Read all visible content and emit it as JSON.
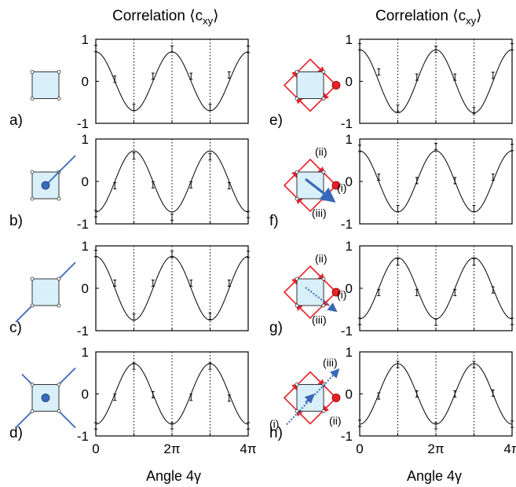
{
  "header": {
    "left": "Correlation ⟨c",
    "left_sub": "xy",
    "left_close": "⟩",
    "right": "Correlation ⟨c",
    "right_sub": "xy",
    "right_close": "⟩"
  },
  "x_axis": {
    "label_left": "Angle  4γ",
    "label_right": "Angle  4γ",
    "ticks": [
      "0",
      "2π",
      "4π"
    ]
  },
  "y_ticks": [
    "1",
    "0",
    "-1"
  ],
  "colors": {
    "square_fill": "#d9f0fa",
    "line_blue": "#3a68b8",
    "arrow_red": "#e8202a",
    "curve": "#000000"
  },
  "panels": [
    {
      "label": "a)",
      "icon": "square",
      "annotations": []
    },
    {
      "label": "b)",
      "icon": "square-dot-halfline",
      "annotations": []
    },
    {
      "label": "c)",
      "icon": "square-diagonal-line",
      "annotations": []
    },
    {
      "label": "d)",
      "icon": "square-dot-cross",
      "annotations": []
    },
    {
      "label": "e)",
      "icon": "square-red-loop",
      "annotations": []
    },
    {
      "label": "f)",
      "icon": "square-red-loop-solid-arrow",
      "annotations": [
        "(ii)",
        "(i)",
        "(iii)"
      ]
    },
    {
      "label": "g)",
      "icon": "square-red-loop-dotted-arrow",
      "annotations": [
        "(ii)",
        "(i)",
        "(iii)"
      ]
    },
    {
      "label": "h)",
      "icon": "square-red-loop-dotted-line",
      "annotations": [
        "(iii)",
        "(i)",
        "(ii)"
      ]
    }
  ],
  "chart_data": [
    {
      "panel": "a)",
      "type": "line",
      "xlabel": "",
      "ylabel": "",
      "xlim": [
        0,
        12.566
      ],
      "ylim": [
        -1,
        1
      ],
      "amplitude": 0.7,
      "x": [
        0,
        1.571,
        3.142,
        4.712,
        6.283,
        7.854,
        9.425,
        10.996,
        12.566
      ],
      "errorbar_values": [
        0.78,
        0.05,
        -0.62,
        0.12,
        0.77,
        0.12,
        -0.62,
        0.15,
        0.76
      ]
    },
    {
      "panel": "b)",
      "type": "line",
      "xlabel": "",
      "ylabel": "",
      "xlim": [
        0,
        12.566
      ],
      "ylim": [
        -1,
        1
      ],
      "amplitude": -0.72,
      "x": [
        0,
        1.571,
        3.142,
        4.712,
        6.283,
        7.854,
        9.425,
        10.996,
        12.566
      ],
      "errorbar_values": [
        -0.76,
        -0.1,
        0.6,
        -0.08,
        -0.84,
        -0.08,
        0.58,
        -0.1,
        -0.78
      ]
    },
    {
      "panel": "c)",
      "type": "line",
      "xlabel": "",
      "ylabel": "",
      "xlim": [
        0,
        12.566
      ],
      "ylim": [
        -1,
        1
      ],
      "amplitude": 0.75,
      "x": [
        0,
        1.571,
        3.142,
        4.712,
        6.283,
        7.854,
        9.425,
        10.996,
        12.566
      ],
      "errorbar_values": [
        0.82,
        0.12,
        -0.68,
        0.12,
        0.8,
        0.12,
        -0.66,
        0.12,
        0.8
      ]
    },
    {
      "panel": "d)",
      "type": "line",
      "xlabel": "Angle  4γ",
      "ylabel": "",
      "xlim": [
        0,
        12.566
      ],
      "ylim": [
        -1,
        1
      ],
      "amplitude": -0.72,
      "x": [
        0,
        1.571,
        3.142,
        4.712,
        6.283,
        7.854,
        9.425,
        10.996,
        12.566
      ],
      "errorbar_values": [
        -0.76,
        -0.08,
        0.66,
        -0.02,
        -0.76,
        -0.08,
        0.66,
        -0.1,
        -0.76
      ]
    },
    {
      "panel": "e)",
      "type": "line",
      "xlabel": "",
      "ylabel": "",
      "xlim": [
        0,
        12.566
      ],
      "ylim": [
        -1,
        1
      ],
      "amplitude": 0.75,
      "x": [
        0,
        1.571,
        3.142,
        4.712,
        6.283,
        7.854,
        9.425,
        10.996,
        12.566
      ],
      "errorbar_values": [
        0.82,
        0.22,
        -0.64,
        0.1,
        0.76,
        0.1,
        -0.7,
        0.14,
        0.82
      ]
    },
    {
      "panel": "f)",
      "type": "line",
      "xlabel": "",
      "ylabel": "",
      "xlim": [
        0,
        12.566
      ],
      "ylim": [
        -1,
        1
      ],
      "amplitude": 0.72,
      "x": [
        0,
        1.571,
        3.142,
        4.712,
        6.283,
        7.854,
        9.425,
        10.996,
        12.566
      ],
      "errorbar_values": [
        0.78,
        0.1,
        -0.64,
        0.02,
        0.82,
        0.02,
        -0.64,
        0.1,
        0.8
      ]
    },
    {
      "panel": "g)",
      "type": "line",
      "xlabel": "",
      "ylabel": "",
      "xlim": [
        0,
        12.566
      ],
      "ylim": [
        -1,
        1
      ],
      "amplitude": -0.72,
      "x": [
        0,
        1.571,
        3.142,
        4.712,
        6.283,
        7.854,
        9.425,
        10.996,
        12.566
      ],
      "errorbar_values": [
        -0.78,
        -0.1,
        0.62,
        -0.1,
        -0.8,
        -0.1,
        0.62,
        -0.04,
        -0.78
      ]
    },
    {
      "panel": "h)",
      "type": "line",
      "xlabel": "Angle  4γ",
      "ylabel": "",
      "xlim": [
        0,
        12.566
      ],
      "ylim": [
        -1,
        1
      ],
      "amplitude": -0.72,
      "x": [
        0,
        1.571,
        3.142,
        4.712,
        6.283,
        7.854,
        9.425,
        10.996,
        12.566
      ],
      "errorbar_values": [
        -0.7,
        -0.05,
        0.7,
        0.0,
        -0.76,
        0.0,
        0.7,
        0.02,
        -0.72
      ]
    }
  ]
}
